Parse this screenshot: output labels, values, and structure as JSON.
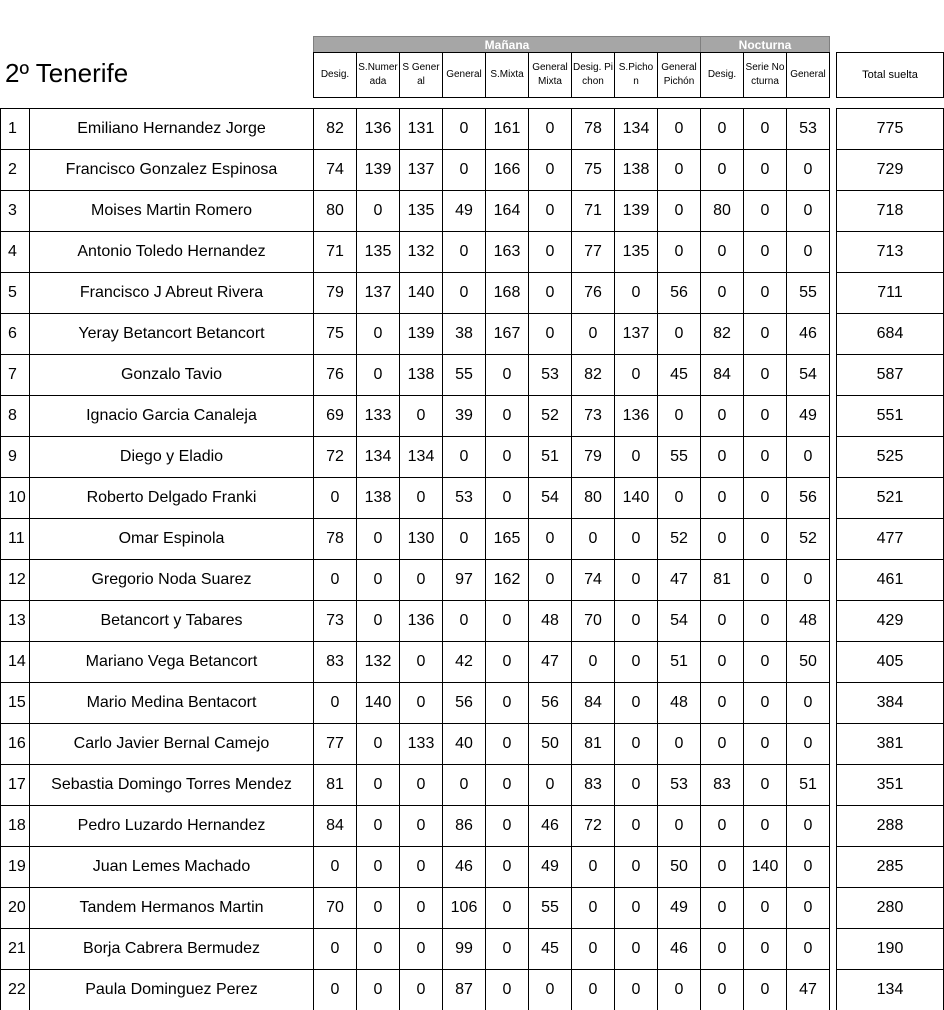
{
  "title": "2º Tenerife",
  "groups": [
    {
      "label": "Mañana"
    },
    {
      "label": "Nocturna"
    }
  ],
  "columns": [
    "Desig.",
    "S.Numerada",
    "S General",
    "General",
    "S.Mixta",
    "General Mixta",
    "Desig. Pichon",
    "S.Pichon",
    "General Pichón",
    "Desig.",
    "Serie Nocturna",
    "General"
  ],
  "total_label": "Total suelta",
  "rows": [
    {
      "rank": 1,
      "name": "Emiliano Hernandez Jorge",
      "scores": [
        82,
        136,
        131,
        0,
        161,
        0,
        78,
        134,
        0,
        0,
        0,
        53
      ],
      "total": 775
    },
    {
      "rank": 2,
      "name": "Francisco Gonzalez Espinosa",
      "scores": [
        74,
        139,
        137,
        0,
        166,
        0,
        75,
        138,
        0,
        0,
        0,
        0
      ],
      "total": 729
    },
    {
      "rank": 3,
      "name": "Moises Martin Romero",
      "scores": [
        80,
        0,
        135,
        49,
        164,
        0,
        71,
        139,
        0,
        80,
        0,
        0
      ],
      "total": 718
    },
    {
      "rank": 4,
      "name": "Antonio Toledo Hernandez",
      "scores": [
        71,
        135,
        132,
        0,
        163,
        0,
        77,
        135,
        0,
        0,
        0,
        0
      ],
      "total": 713
    },
    {
      "rank": 5,
      "name": "Francisco J Abreut Rivera",
      "scores": [
        79,
        137,
        140,
        0,
        168,
        0,
        76,
        0,
        56,
        0,
        0,
        55
      ],
      "total": 711
    },
    {
      "rank": 6,
      "name": "Yeray Betancort Betancort",
      "scores": [
        75,
        0,
        139,
        38,
        167,
        0,
        0,
        137,
        0,
        82,
        0,
        46
      ],
      "total": 684
    },
    {
      "rank": 7,
      "name": "Gonzalo Tavio",
      "scores": [
        76,
        0,
        138,
        55,
        0,
        53,
        82,
        0,
        45,
        84,
        0,
        54
      ],
      "total": 587
    },
    {
      "rank": 8,
      "name": "Ignacio Garcia Canaleja",
      "scores": [
        69,
        133,
        0,
        39,
        0,
        52,
        73,
        136,
        0,
        0,
        0,
        49
      ],
      "total": 551
    },
    {
      "rank": 9,
      "name": "Diego y Eladio",
      "scores": [
        72,
        134,
        134,
        0,
        0,
        51,
        79,
        0,
        55,
        0,
        0,
        0
      ],
      "total": 525
    },
    {
      "rank": 10,
      "name": "Roberto Delgado Franki",
      "scores": [
        0,
        138,
        0,
        53,
        0,
        54,
        80,
        140,
        0,
        0,
        0,
        56
      ],
      "total": 521
    },
    {
      "rank": 11,
      "name": "Omar Espinola",
      "scores": [
        78,
        0,
        130,
        0,
        165,
        0,
        0,
        0,
        52,
        0,
        0,
        52
      ],
      "total": 477
    },
    {
      "rank": 12,
      "name": "Gregorio Noda Suarez",
      "scores": [
        0,
        0,
        0,
        97,
        162,
        0,
        74,
        0,
        47,
        81,
        0,
        0
      ],
      "total": 461
    },
    {
      "rank": 13,
      "name": "Betancort y Tabares",
      "scores": [
        73,
        0,
        136,
        0,
        0,
        48,
        70,
        0,
        54,
        0,
        0,
        48
      ],
      "total": 429
    },
    {
      "rank": 14,
      "name": "Mariano Vega Betancort",
      "scores": [
        83,
        132,
        0,
        42,
        0,
        47,
        0,
        0,
        51,
        0,
        0,
        50
      ],
      "total": 405
    },
    {
      "rank": 15,
      "name": "Mario Medina Bentacort",
      "scores": [
        0,
        140,
        0,
        56,
        0,
        56,
        84,
        0,
        48,
        0,
        0,
        0
      ],
      "total": 384
    },
    {
      "rank": 16,
      "name": "Carlo Javier Bernal Camejo",
      "scores": [
        77,
        0,
        133,
        40,
        0,
        50,
        81,
        0,
        0,
        0,
        0,
        0
      ],
      "total": 381
    },
    {
      "rank": 17,
      "name": "Sebastia Domingo Torres Mendez",
      "scores": [
        81,
        0,
        0,
        0,
        0,
        0,
        83,
        0,
        53,
        83,
        0,
        51
      ],
      "total": 351
    },
    {
      "rank": 18,
      "name": "Pedro Luzardo Hernandez",
      "scores": [
        84,
        0,
        0,
        86,
        0,
        46,
        72,
        0,
        0,
        0,
        0,
        0
      ],
      "total": 288
    },
    {
      "rank": 19,
      "name": "Juan Lemes Machado",
      "scores": [
        0,
        0,
        0,
        46,
        0,
        49,
        0,
        0,
        50,
        0,
        140,
        0
      ],
      "total": 285
    },
    {
      "rank": 20,
      "name": "Tandem Hermanos Martin",
      "scores": [
        70,
        0,
        0,
        106,
        0,
        55,
        0,
        0,
        49,
        0,
        0,
        0
      ],
      "total": 280
    },
    {
      "rank": 21,
      "name": "Borja Cabrera Bermudez",
      "scores": [
        0,
        0,
        0,
        99,
        0,
        45,
        0,
        0,
        46,
        0,
        0,
        0
      ],
      "total": 190
    },
    {
      "rank": 22,
      "name": "Paula Dominguez Perez",
      "scores": [
        0,
        0,
        0,
        87,
        0,
        0,
        0,
        0,
        0,
        0,
        0,
        47
      ],
      "total": 134
    }
  ]
}
